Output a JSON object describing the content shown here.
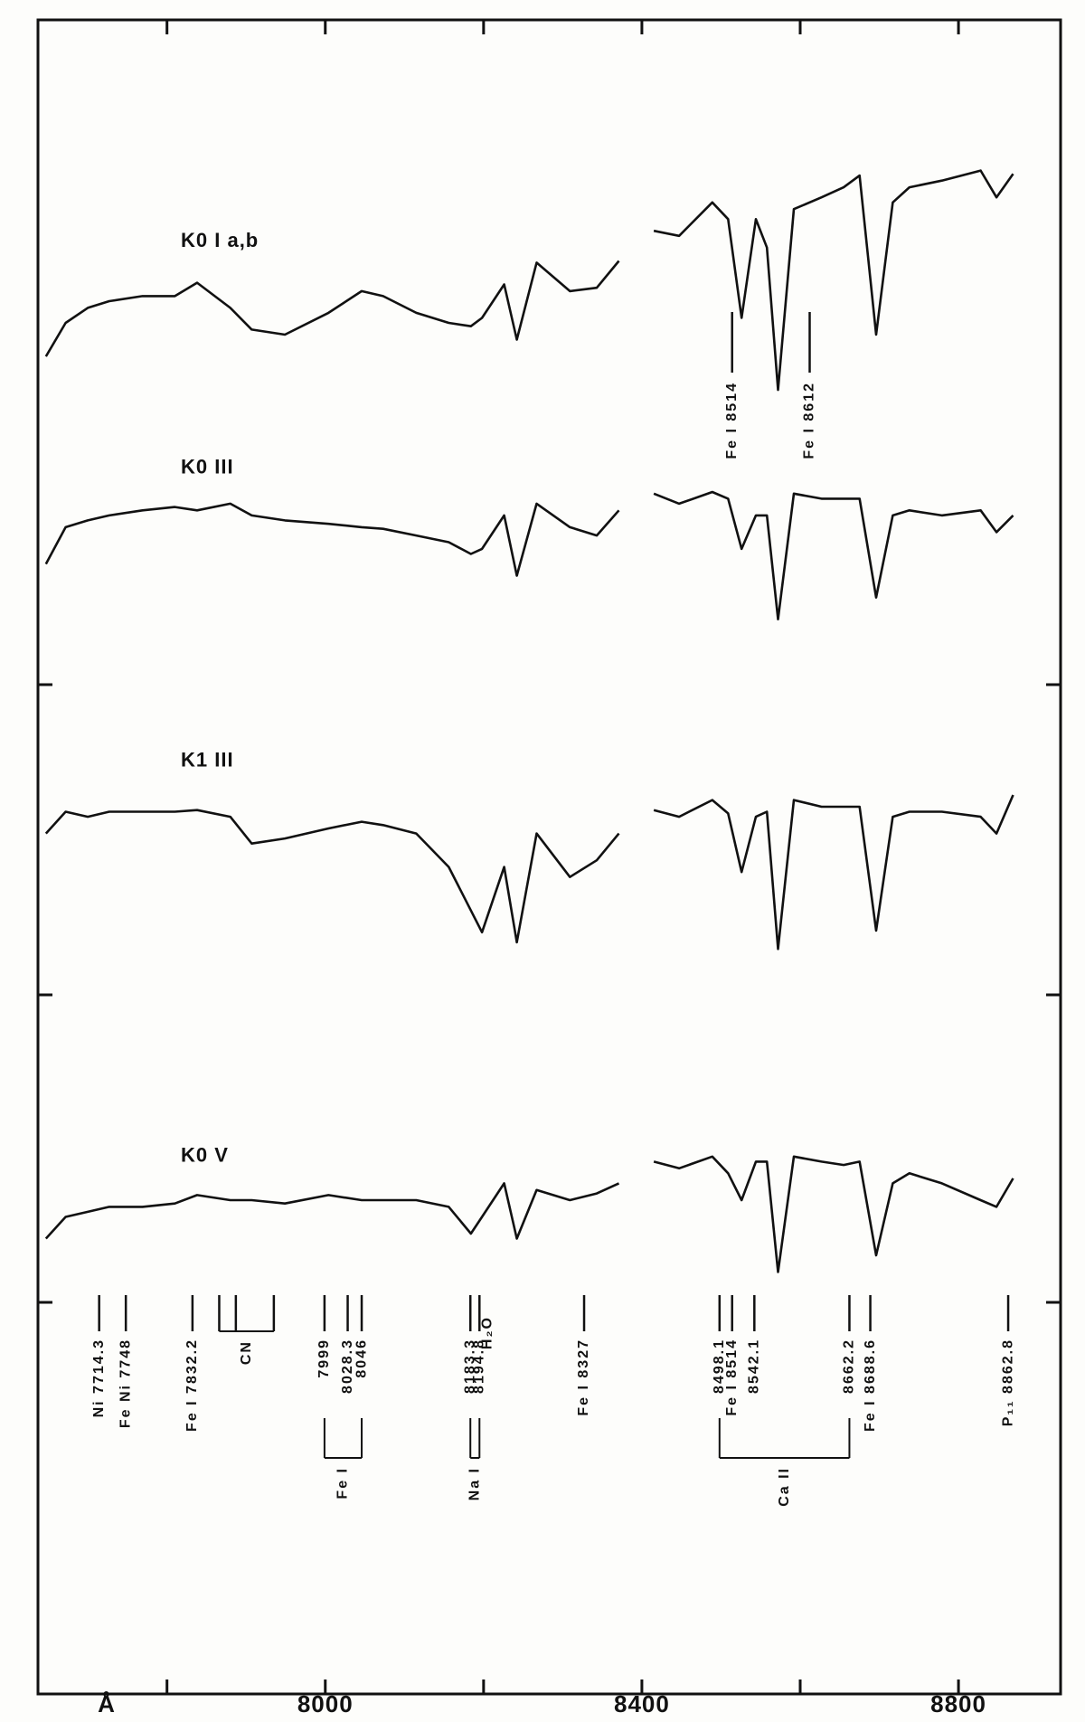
{
  "chart_data": {
    "type": "line",
    "x_label": "Å",
    "xlim": [
      7637,
      8929
    ],
    "ylim": [
      0,
      100
    ],
    "xticks": [
      8000,
      8400,
      8800
    ],
    "xminor_ticks": [
      7800,
      8200,
      8600
    ],
    "x": [
      7647,
      7672,
      7700,
      7727,
      7769,
      7810,
      7838,
      7880,
      7907,
      7949,
      8004,
      8046,
      8073,
      8115,
      8156,
      8184,
      8198,
      8226,
      8242,
      8267,
      8309,
      8343,
      8371,
      8393,
      8415,
      8447,
      8489,
      8509,
      8526,
      8544,
      8558,
      8572,
      8592,
      8627,
      8655,
      8675,
      8696,
      8717,
      8738,
      8779,
      8828,
      8848,
      8869
    ],
    "series": [
      {
        "name": "K0 I a,b",
        "color": "#111111",
        "values": [
          79.9,
          81.9,
          82.8,
          83.2,
          83.5,
          83.5,
          84.3,
          82.8,
          81.5,
          81.2,
          82.5,
          83.8,
          83.5,
          82.5,
          81.9,
          81.7,
          82.2,
          84.2,
          80.9,
          85.5,
          83.8,
          84.0,
          85.6,
          null,
          87.4,
          87.1,
          89.1,
          88.1,
          82.2,
          88.1,
          86.4,
          77.9,
          88.7,
          89.4,
          90.0,
          90.7,
          81.2,
          89.1,
          90.0,
          90.4,
          91.0,
          89.4,
          90.8
        ]
      },
      {
        "name": "K0 III",
        "color": "#111111",
        "values": [
          67.5,
          69.7,
          70.1,
          70.4,
          70.7,
          70.9,
          70.7,
          71.1,
          70.4,
          70.1,
          69.9,
          69.7,
          69.6,
          69.2,
          68.8,
          68.1,
          68.4,
          70.4,
          66.8,
          71.1,
          69.7,
          69.2,
          70.7,
          null,
          71.7,
          71.1,
          71.8,
          71.4,
          68.4,
          70.4,
          70.4,
          64.2,
          71.7,
          71.4,
          71.4,
          71.4,
          65.5,
          70.4,
          70.7,
          70.4,
          70.7,
          69.4,
          70.4
        ]
      },
      {
        "name": "K1 III",
        "color": "#111111",
        "values": [
          51.4,
          52.7,
          52.4,
          52.7,
          52.7,
          52.7,
          52.8,
          52.4,
          50.8,
          51.1,
          51.7,
          52.1,
          51.9,
          51.4,
          49.4,
          46.8,
          45.5,
          49.4,
          44.9,
          51.4,
          48.8,
          49.8,
          51.4,
          null,
          52.8,
          52.4,
          53.4,
          52.6,
          49.1,
          52.4,
          52.7,
          44.5,
          53.4,
          53.0,
          53.0,
          53.0,
          45.6,
          52.4,
          52.7,
          52.7,
          52.4,
          51.4,
          53.7
        ]
      },
      {
        "name": "K0 V",
        "color": "#111111",
        "values": [
          27.2,
          28.5,
          28.8,
          29.1,
          29.1,
          29.3,
          29.8,
          29.5,
          29.5,
          29.3,
          29.8,
          29.5,
          29.5,
          29.5,
          29.1,
          27.5,
          28.5,
          30.5,
          27.2,
          30.1,
          29.5,
          29.9,
          30.5,
          null,
          31.8,
          31.4,
          32.1,
          31.1,
          29.5,
          31.8,
          31.8,
          25.2,
          32.1,
          31.8,
          31.6,
          31.8,
          26.2,
          30.5,
          31.1,
          30.5,
          29.5,
          29.1,
          30.8
        ]
      }
    ],
    "upper_ids": [
      {
        "label": "Fe I 8514",
        "x": 8514
      },
      {
        "label": "Fe I 8612",
        "x": 8612
      }
    ],
    "line_ids": [
      {
        "label": "Ni 7714.3",
        "x": 7714.3
      },
      {
        "label": "Fe Ni 7748",
        "x": 7748
      },
      {
        "label": "Fe I 7832.2",
        "x": 7832.2
      },
      {
        "label": "H₂O",
        "x": 8205
      },
      {
        "label": "Fe I 8327",
        "x": 8327
      },
      {
        "label": "Fe I 8514",
        "x": 8514
      },
      {
        "label": "Fe I 8688.6",
        "x": 8688.6
      },
      {
        "label": "P₁₁ 8862.8",
        "x": 8862.8
      }
    ],
    "line_groups": [
      {
        "label": "CN",
        "members": [
          {
            "x": 7866
          },
          {
            "x": 7887
          },
          {
            "x": 7935
          }
        ]
      },
      {
        "label": "Fe I",
        "members": [
          {
            "label": "7999",
            "x": 7999
          },
          {
            "label": "8028.3",
            "x": 8028.3
          },
          {
            "label": "8046",
            "x": 8046
          }
        ]
      },
      {
        "label": "Na I",
        "members": [
          {
            "label": "8183.3",
            "x": 8183.3
          },
          {
            "label": "8194.8",
            "x": 8194.8
          }
        ]
      },
      {
        "label": "Ca II",
        "members": [
          {
            "label": "8498.1",
            "x": 8498.1
          },
          {
            "label": "8542.1",
            "x": 8542.1
          },
          {
            "label": "8662.2",
            "x": 8662.2
          }
        ]
      }
    ]
  }
}
